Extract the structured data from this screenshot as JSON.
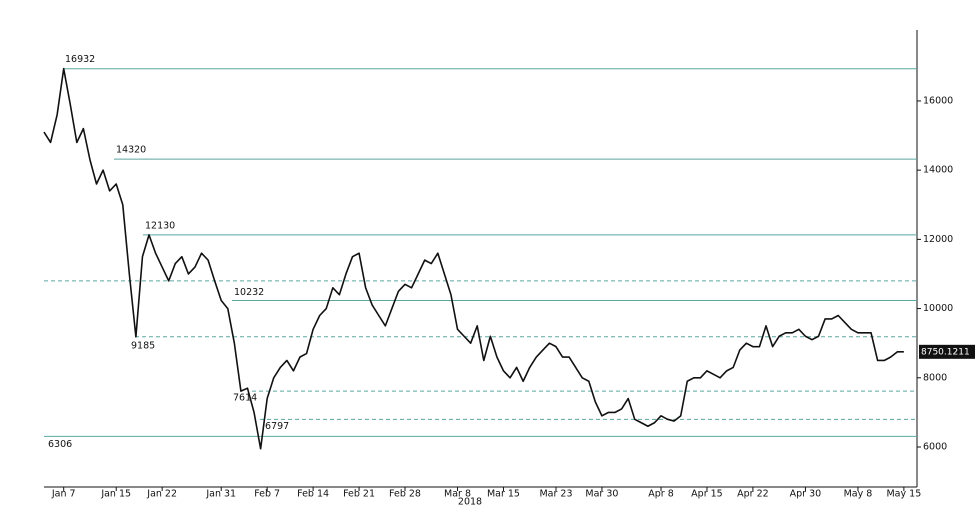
{
  "chart_data": {
    "type": "line",
    "x": [
      "2018-01-04",
      "2018-01-05",
      "2018-01-06",
      "2018-01-07",
      "2018-01-08",
      "2018-01-09",
      "2018-01-10",
      "2018-01-11",
      "2018-01-12",
      "2018-01-13",
      "2018-01-14",
      "2018-01-15",
      "2018-01-16",
      "2018-01-17",
      "2018-01-18",
      "2018-01-19",
      "2018-01-20",
      "2018-01-21",
      "2018-01-22",
      "2018-01-23",
      "2018-01-24",
      "2018-01-25",
      "2018-01-26",
      "2018-01-27",
      "2018-01-28",
      "2018-01-29",
      "2018-01-30",
      "2018-01-31",
      "2018-02-01",
      "2018-02-02",
      "2018-02-03",
      "2018-02-04",
      "2018-02-05",
      "2018-02-06",
      "2018-02-07",
      "2018-02-08",
      "2018-02-09",
      "2018-02-10",
      "2018-02-11",
      "2018-02-12",
      "2018-02-13",
      "2018-02-14",
      "2018-02-15",
      "2018-02-16",
      "2018-02-17",
      "2018-02-18",
      "2018-02-19",
      "2018-02-20",
      "2018-02-21",
      "2018-02-22",
      "2018-02-23",
      "2018-02-24",
      "2018-02-25",
      "2018-02-26",
      "2018-02-27",
      "2018-02-28",
      "2018-03-01",
      "2018-03-02",
      "2018-03-03",
      "2018-03-04",
      "2018-03-05",
      "2018-03-06",
      "2018-03-07",
      "2018-03-08",
      "2018-03-09",
      "2018-03-10",
      "2018-03-11",
      "2018-03-12",
      "2018-03-13",
      "2018-03-14",
      "2018-03-15",
      "2018-03-16",
      "2018-03-17",
      "2018-03-18",
      "2018-03-19",
      "2018-03-20",
      "2018-03-21",
      "2018-03-22",
      "2018-03-23",
      "2018-03-24",
      "2018-03-25",
      "2018-03-26",
      "2018-03-27",
      "2018-03-28",
      "2018-03-29",
      "2018-03-30",
      "2018-03-31",
      "2018-04-01",
      "2018-04-02",
      "2018-04-03",
      "2018-04-04",
      "2018-04-05",
      "2018-04-06",
      "2018-04-07",
      "2018-04-08",
      "2018-04-09",
      "2018-04-10",
      "2018-04-11",
      "2018-04-12",
      "2018-04-13",
      "2018-04-14",
      "2018-04-15",
      "2018-04-16",
      "2018-04-17",
      "2018-04-18",
      "2018-04-19",
      "2018-04-20",
      "2018-04-21",
      "2018-04-22",
      "2018-04-23",
      "2018-04-24",
      "2018-04-25",
      "2018-04-26",
      "2018-04-27",
      "2018-04-28",
      "2018-04-29",
      "2018-04-30",
      "2018-05-01",
      "2018-05-02",
      "2018-05-03",
      "2018-05-04",
      "2018-05-05",
      "2018-05-06",
      "2018-05-07",
      "2018-05-08",
      "2018-05-09",
      "2018-05-10",
      "2018-05-11",
      "2018-05-12",
      "2018-05-13",
      "2018-05-14",
      "2018-05-15"
    ],
    "values": [
      15100,
      14800,
      15600,
      16932,
      15900,
      14800,
      15200,
      14300,
      13600,
      14000,
      13400,
      13600,
      13000,
      11000,
      9185,
      11500,
      12130,
      11600,
      11200,
      10800,
      11300,
      11500,
      11000,
      11200,
      11600,
      11400,
      10800,
      10232,
      10000,
      9000,
      7614,
      7700,
      7000,
      5950,
      7400,
      8000,
      8300,
      8500,
      8200,
      8600,
      8700,
      9400,
      9800,
      10000,
      10600,
      10400,
      11000,
      11500,
      11600,
      10600,
      10100,
      9800,
      9500,
      10000,
      10500,
      10700,
      10600,
      11000,
      11400,
      11300,
      11600,
      11000,
      10400,
      9400,
      9200,
      9000,
      9500,
      8500,
      9200,
      8600,
      8200,
      8000,
      8300,
      7900,
      8300,
      8600,
      8800,
      9000,
      8900,
      8600,
      8600,
      8300,
      8000,
      7900,
      7300,
      6900,
      7000,
      7000,
      7100,
      7400,
      6800,
      6700,
      6600,
      6700,
      6900,
      6800,
      6750,
      6900,
      7900,
      8000,
      8000,
      8200,
      8100,
      8000,
      8200,
      8300,
      8800,
      9000,
      8900,
      8900,
      9500,
      8900,
      9200,
      9300,
      9300,
      9400,
      9200,
      9100,
      9200,
      9700,
      9700,
      9800,
      9600,
      9400,
      9300,
      9300,
      9300,
      8500,
      8500,
      8600,
      8750,
      8750.1211
    ],
    "color": "#111111",
    "xlim": [
      "2018-01-04",
      "2018-05-17"
    ],
    "xticks": [
      {
        "value": "2018-01-07",
        "label": "Jan 7"
      },
      {
        "value": "2018-01-15",
        "label": "Jan 15"
      },
      {
        "value": "2018-01-22",
        "label": "Jan 22"
      },
      {
        "value": "2018-01-31",
        "label": "Jan 31"
      },
      {
        "value": "2018-02-07",
        "label": "Feb 7"
      },
      {
        "value": "2018-02-14",
        "label": "Feb 14"
      },
      {
        "value": "2018-02-21",
        "label": "Feb 21"
      },
      {
        "value": "2018-02-28",
        "label": "Feb 28"
      },
      {
        "value": "2018-03-08",
        "label": "Mar 8"
      },
      {
        "value": "2018-03-15",
        "label": "Mar 15"
      },
      {
        "value": "2018-03-23",
        "label": "Mar 23"
      },
      {
        "value": "2018-03-30",
        "label": "Mar 30"
      },
      {
        "value": "2018-04-08",
        "label": "Apr 8"
      },
      {
        "value": "2018-04-15",
        "label": "Apr 15"
      },
      {
        "value": "2018-04-22",
        "label": "Apr 22"
      },
      {
        "value": "2018-04-30",
        "label": "Apr 30"
      },
      {
        "value": "2018-05-08",
        "label": "May 8"
      },
      {
        "value": "2018-05-15",
        "label": "May 15"
      }
    ],
    "xlabel": "2018",
    "ylim": [
      4844,
      18050
    ],
    "yticks": [
      6000,
      8000,
      10000,
      12000,
      14000,
      16000
    ],
    "level_color": "#5aa8a0",
    "levels": [
      {
        "value": 16932,
        "style": "solid",
        "labeled": true
      },
      {
        "value": 14320,
        "style": "solid",
        "labeled": true
      },
      {
        "value": 12130,
        "style": "solid",
        "labeled": true
      },
      {
        "value": 10800,
        "style": "dashed",
        "labeled": false
      },
      {
        "value": 10232,
        "style": "solid",
        "labeled": true
      },
      {
        "value": 9185,
        "style": "dashed",
        "labeled": true
      },
      {
        "value": 7614,
        "style": "dashed",
        "labeled": true
      },
      {
        "value": 6797,
        "style": "dashed",
        "labeled": true
      },
      {
        "value": 6306,
        "style": "solid",
        "labeled": true
      }
    ]
  }
}
